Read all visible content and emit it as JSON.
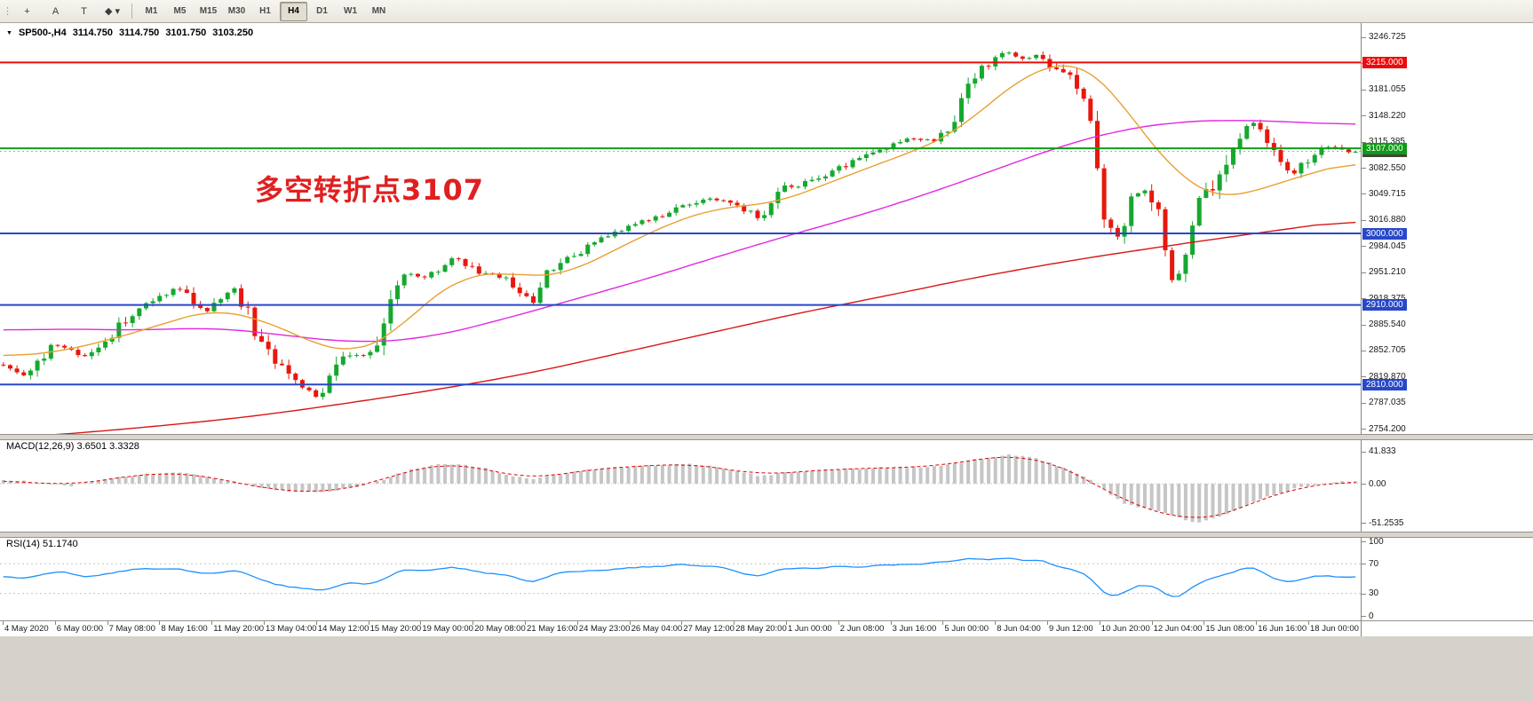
{
  "toolbar": {
    "grip_glyph": "⋮",
    "tools": [
      {
        "name": "crosshair-tool",
        "glyph": "+"
      },
      {
        "name": "label-tool",
        "glyph": "A"
      },
      {
        "name": "text-tool",
        "glyph": "T"
      },
      {
        "name": "shapes-tool",
        "glyph": "◆ ▾"
      }
    ],
    "timeframes": [
      "M1",
      "M5",
      "M15",
      "M30",
      "H1",
      "H4",
      "D1",
      "W1",
      "MN"
    ],
    "active_timeframe": "H4"
  },
  "chart": {
    "dropdown_glyph": "▼",
    "symbol_period": "SP500-,H4",
    "ohlc": {
      "open": "3114.750",
      "high": "3114.750",
      "low": "3101.750",
      "close": "3103.250"
    },
    "annotation": {
      "text": "多空转折点3107",
      "color": "#e02020"
    },
    "bid": {
      "label": "3103.250",
      "price": 3103.25,
      "badge_color": "#44443c",
      "line_color": "#aaaaaa"
    },
    "hlines": [
      {
        "price": 3215.0,
        "label": "3215.000",
        "color": "#ee0a0a"
      },
      {
        "price": 3107.0,
        "label": "3107.000",
        "color": "#0e9c16"
      },
      {
        "price": 3000.0,
        "label": "3000.000",
        "color": "#2848c8"
      },
      {
        "price": 2910.0,
        "label": "2910.000",
        "color": "#2848c8"
      },
      {
        "price": 2810.0,
        "label": "2810.000",
        "color": "#2848c8"
      }
    ],
    "colors": {
      "up": "#15a82f",
      "down": "#e8180c",
      "ma_fast": "#e8a030",
      "ma_mid": "#e128e1",
      "ma_slow": "#d81616"
    }
  },
  "price_axis": {
    "labels": [
      "3246.725",
      "3213.890",
      "3181.055",
      "3148.220",
      "3115.385",
      "3082.550",
      "3049.715",
      "3016.880",
      "2984.045",
      "2951.210",
      "2918.375",
      "2885.540",
      "2852.705",
      "2819.870",
      "2787.035",
      "2754.200"
    ]
  },
  "indicators": {
    "macd": {
      "label": "MACD(12,26,9) 3.6501 3.3328",
      "hist_color": "#c6c6c6",
      "signal_color": "#e00000",
      "axis": [
        {
          "value": 41.833,
          "text": "41.833"
        },
        {
          "value": 0,
          "text": "0.00"
        },
        {
          "value": -51.2535,
          "text": "-51.2535"
        }
      ]
    },
    "rsi": {
      "label": "RSI(14) 51.1740",
      "line_color": "#1e90ff",
      "levels": [
        70,
        30
      ],
      "axis": [
        {
          "value": 100,
          "text": "100"
        },
        {
          "value": 70,
          "text": "70"
        },
        {
          "value": 30,
          "text": "30"
        },
        {
          "value": 0,
          "text": "0"
        }
      ]
    }
  },
  "time_axis": [
    "4 May 2020",
    "6 May 00:00",
    "7 May 08:00",
    "8 May 16:00",
    "11 May 20:00",
    "13 May 04:00",
    "14 May 12:00",
    "15 May 20:00",
    "19 May 00:00",
    "20 May 08:00",
    "21 May 16:00",
    "24 May 23:00",
    "26 May 04:00",
    "27 May 12:00",
    "28 May 20:00",
    "1 Jun 00:00",
    "2 Jun 08:00",
    "3 Jun 16:00",
    "5 Jun 00:00",
    "8 Jun 04:00",
    "9 Jun 12:00",
    "10 Jun 20:00",
    "12 Jun 04:00",
    "15 Jun 08:00",
    "16 Jun 16:00",
    "18 Jun 00:00"
  ],
  "chart_data": {
    "type": "candlestick",
    "symbol": "SP500",
    "timeframe": "H4",
    "visible_range": {
      "from": "4 May 2020",
      "to": "18 Jun 2020"
    },
    "price_scale": {
      "top": 3264.5,
      "bottom": 2747.8
    },
    "bars": 200,
    "last_ohlc": {
      "open": 3114.75,
      "high": 3114.75,
      "low": 3101.75,
      "close": 3103.25
    },
    "horizontal_levels": [
      3215,
      3107,
      3000,
      2910,
      2810
    ],
    "close_path": [
      [
        0,
        2835
      ],
      [
        30,
        2820
      ],
      [
        60,
        2860
      ],
      [
        100,
        2845
      ],
      [
        150,
        2900
      ],
      [
        200,
        2932
      ],
      [
        230,
        2900
      ],
      [
        265,
        2930
      ],
      [
        300,
        2850
      ],
      [
        330,
        2820
      ],
      [
        360,
        2790
      ],
      [
        390,
        2850
      ],
      [
        420,
        2845
      ],
      [
        450,
        2950
      ],
      [
        480,
        2945
      ],
      [
        510,
        2970
      ],
      [
        540,
        2950
      ],
      [
        570,
        2945
      ],
      [
        600,
        2912
      ],
      [
        620,
        2955
      ],
      [
        650,
        2975
      ],
      [
        680,
        2995
      ],
      [
        710,
        3010
      ],
      [
        740,
        3020
      ],
      [
        770,
        3035
      ],
      [
        800,
        3045
      ],
      [
        830,
        3035
      ],
      [
        855,
        3020
      ],
      [
        880,
        3055
      ],
      [
        910,
        3065
      ],
      [
        940,
        3080
      ],
      [
        970,
        3095
      ],
      [
        1000,
        3110
      ],
      [
        1030,
        3120
      ],
      [
        1055,
        3115
      ],
      [
        1075,
        3150
      ],
      [
        1090,
        3195
      ],
      [
        1110,
        3210
      ],
      [
        1130,
        3230
      ],
      [
        1150,
        3220
      ],
      [
        1170,
        3225
      ],
      [
        1190,
        3205
      ],
      [
        1210,
        3190
      ],
      [
        1230,
        3130
      ],
      [
        1245,
        3005
      ],
      [
        1260,
        3000
      ],
      [
        1275,
        3045
      ],
      [
        1290,
        3055
      ],
      [
        1305,
        3030
      ],
      [
        1320,
        2935
      ],
      [
        1335,
        2965
      ],
      [
        1350,
        3035
      ],
      [
        1365,
        3060
      ],
      [
        1380,
        3090
      ],
      [
        1395,
        3125
      ],
      [
        1410,
        3140
      ],
      [
        1425,
        3115
      ],
      [
        1440,
        3090
      ],
      [
        1455,
        3075
      ],
      [
        1470,
        3090
      ],
      [
        1485,
        3105
      ],
      [
        1500,
        3110
      ],
      [
        1515,
        3103
      ],
      [
        1530,
        3103
      ]
    ],
    "ma_fast": [
      [
        0,
        2845
      ],
      [
        60,
        2850
      ],
      [
        120,
        2865
      ],
      [
        180,
        2885
      ],
      [
        240,
        2905
      ],
      [
        300,
        2890
      ],
      [
        360,
        2858
      ],
      [
        400,
        2850
      ],
      [
        440,
        2870
      ],
      [
        480,
        2915
      ],
      [
        520,
        2945
      ],
      [
        560,
        2952
      ],
      [
        600,
        2945
      ],
      [
        640,
        2950
      ],
      [
        680,
        2972
      ],
      [
        720,
        2995
      ],
      [
        760,
        3015
      ],
      [
        800,
        3030
      ],
      [
        840,
        3035
      ],
      [
        880,
        3040
      ],
      [
        920,
        3058
      ],
      [
        960,
        3075
      ],
      [
        1000,
        3092
      ],
      [
        1040,
        3108
      ],
      [
        1080,
        3130
      ],
      [
        1120,
        3170
      ],
      [
        1160,
        3202
      ],
      [
        1190,
        3215
      ],
      [
        1220,
        3212
      ],
      [
        1250,
        3185
      ],
      [
        1280,
        3135
      ],
      [
        1310,
        3095
      ],
      [
        1340,
        3060
      ],
      [
        1370,
        3045
      ],
      [
        1400,
        3048
      ],
      [
        1430,
        3060
      ],
      [
        1460,
        3070
      ],
      [
        1490,
        3080
      ],
      [
        1530,
        3092
      ]
    ],
    "ma_mid": [
      [
        0,
        2878
      ],
      [
        80,
        2880
      ],
      [
        160,
        2878
      ],
      [
        240,
        2882
      ],
      [
        320,
        2872
      ],
      [
        400,
        2862
      ],
      [
        480,
        2868
      ],
      [
        560,
        2890
      ],
      [
        640,
        2915
      ],
      [
        720,
        2940
      ],
      [
        800,
        2968
      ],
      [
        880,
        2995
      ],
      [
        960,
        3020
      ],
      [
        1040,
        3048
      ],
      [
        1120,
        3080
      ],
      [
        1200,
        3112
      ],
      [
        1260,
        3130
      ],
      [
        1320,
        3140
      ],
      [
        1380,
        3143
      ],
      [
        1440,
        3141
      ],
      [
        1530,
        3136
      ]
    ],
    "ma_slow": [
      [
        0,
        2742
      ],
      [
        100,
        2750
      ],
      [
        200,
        2760
      ],
      [
        300,
        2772
      ],
      [
        400,
        2788
      ],
      [
        500,
        2805
      ],
      [
        600,
        2825
      ],
      [
        700,
        2850
      ],
      [
        800,
        2875
      ],
      [
        900,
        2900
      ],
      [
        1000,
        2922
      ],
      [
        1100,
        2945
      ],
      [
        1200,
        2965
      ],
      [
        1300,
        2982
      ],
      [
        1400,
        2998
      ],
      [
        1530,
        3018
      ]
    ],
    "macd": {
      "last": 3.6501,
      "signal_last": 3.3328,
      "range": [
        -51.2535,
        41.833
      ],
      "path": [
        [
          0,
          5
        ],
        [
          40,
          2
        ],
        [
          80,
          -3
        ],
        [
          120,
          6
        ],
        [
          160,
          12
        ],
        [
          200,
          15
        ],
        [
          240,
          8
        ],
        [
          280,
          -2
        ],
        [
          320,
          -10
        ],
        [
          360,
          -12
        ],
        [
          400,
          -5
        ],
        [
          430,
          5
        ],
        [
          460,
          18
        ],
        [
          500,
          26
        ],
        [
          540,
          22
        ],
        [
          570,
          12
        ],
        [
          600,
          6
        ],
        [
          630,
          12
        ],
        [
          660,
          18
        ],
        [
          700,
          22
        ],
        [
          740,
          24
        ],
        [
          780,
          26
        ],
        [
          820,
          20
        ],
        [
          855,
          10
        ],
        [
          880,
          14
        ],
        [
          920,
          18
        ],
        [
          960,
          20
        ],
        [
          1000,
          21
        ],
        [
          1040,
          22
        ],
        [
          1075,
          26
        ],
        [
          1110,
          34
        ],
        [
          1140,
          38
        ],
        [
          1170,
          32
        ],
        [
          1200,
          20
        ],
        [
          1230,
          5
        ],
        [
          1250,
          -15
        ],
        [
          1270,
          -28
        ],
        [
          1290,
          -32
        ],
        [
          1310,
          -38
        ],
        [
          1330,
          -46
        ],
        [
          1345,
          -51
        ],
        [
          1360,
          -48
        ],
        [
          1380,
          -40
        ],
        [
          1400,
          -30
        ],
        [
          1420,
          -20
        ],
        [
          1440,
          -12
        ],
        [
          1460,
          -6
        ],
        [
          1480,
          -2
        ],
        [
          1500,
          2
        ],
        [
          1515,
          3.65
        ],
        [
          1530,
          3.65
        ]
      ]
    },
    "rsi": {
      "last": 51.174,
      "path": [
        [
          0,
          55
        ],
        [
          30,
          48
        ],
        [
          60,
          60
        ],
        [
          100,
          52
        ],
        [
          150,
          62
        ],
        [
          200,
          65
        ],
        [
          230,
          55
        ],
        [
          270,
          60
        ],
        [
          300,
          45
        ],
        [
          330,
          38
        ],
        [
          360,
          33
        ],
        [
          390,
          45
        ],
        [
          420,
          42
        ],
        [
          450,
          62
        ],
        [
          480,
          60
        ],
        [
          510,
          66
        ],
        [
          540,
          58
        ],
        [
          570,
          55
        ],
        [
          600,
          44
        ],
        [
          630,
          58
        ],
        [
          680,
          62
        ],
        [
          720,
          65
        ],
        [
          760,
          68
        ],
        [
          800,
          68
        ],
        [
          830,
          60
        ],
        [
          855,
          52
        ],
        [
          880,
          63
        ],
        [
          920,
          64
        ],
        [
          960,
          67
        ],
        [
          1000,
          68
        ],
        [
          1040,
          70
        ],
        [
          1075,
          72
        ],
        [
          1090,
          78
        ],
        [
          1110,
          75
        ],
        [
          1130,
          80
        ],
        [
          1150,
          73
        ],
        [
          1170,
          75
        ],
        [
          1190,
          65
        ],
        [
          1210,
          60
        ],
        [
          1230,
          50
        ],
        [
          1245,
          28
        ],
        [
          1260,
          25
        ],
        [
          1275,
          38
        ],
        [
          1290,
          42
        ],
        [
          1305,
          35
        ],
        [
          1320,
          22
        ],
        [
          1335,
          30
        ],
        [
          1350,
          45
        ],
        [
          1365,
          50
        ],
        [
          1380,
          55
        ],
        [
          1395,
          62
        ],
        [
          1410,
          65
        ],
        [
          1425,
          55
        ],
        [
          1440,
          48
        ],
        [
          1455,
          45
        ],
        [
          1470,
          50
        ],
        [
          1485,
          53
        ],
        [
          1500,
          55
        ],
        [
          1515,
          51.17
        ],
        [
          1530,
          51.17
        ]
      ]
    }
  }
}
